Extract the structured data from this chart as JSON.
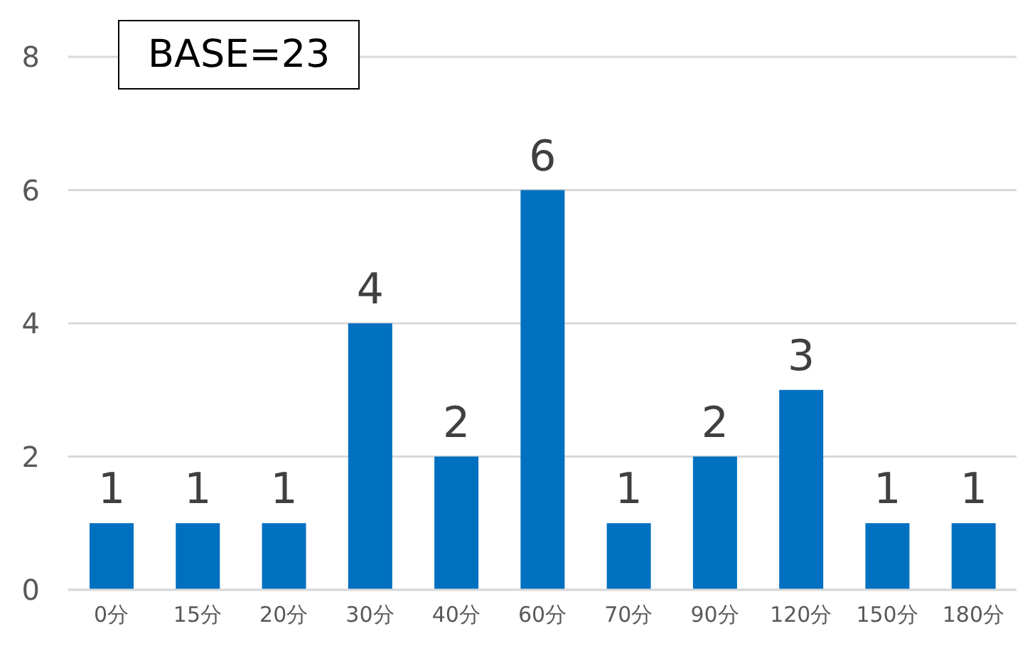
{
  "chart_data": {
    "type": "bar",
    "categories": [
      "0分",
      "15分",
      "20分",
      "30分",
      "40分",
      "60分",
      "70分",
      "90分",
      "120分",
      "150分",
      "180分"
    ],
    "values": [
      1,
      1,
      1,
      4,
      2,
      6,
      1,
      2,
      3,
      1,
      1
    ],
    "color": "#0070c0",
    "ylim": [
      0,
      8
    ],
    "yticks": [
      0,
      2,
      4,
      6,
      8
    ],
    "grid": "y",
    "data_labels": true,
    "annotations": [
      "BASE=23"
    ]
  }
}
